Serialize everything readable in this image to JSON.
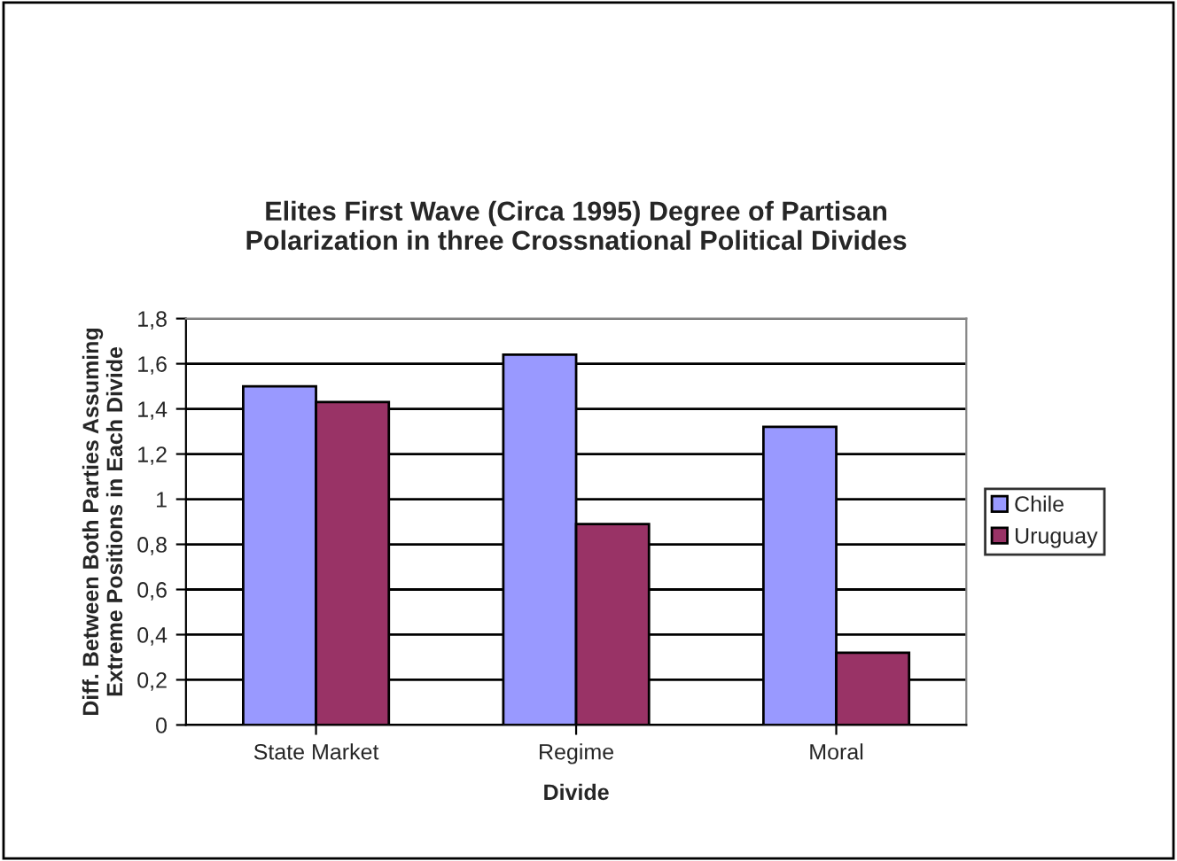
{
  "chart_data": {
    "type": "bar",
    "title": "Elites First Wave (Circa 1995) Degree of Partisan\nPolarization in three Crossnational Political Divides",
    "xlabel": "Divide",
    "ylabel": "Diff. Between Both Parties Assuming\nExtreme Positions in Each Divide",
    "categories": [
      "State Market",
      "Regime",
      "Moral"
    ],
    "series": [
      {
        "name": "Chile",
        "color": "#9999ff",
        "values": [
          1.5,
          1.64,
          1.32
        ]
      },
      {
        "name": "Uruguay",
        "color": "#993366",
        "values": [
          1.43,
          0.89,
          0.32
        ]
      }
    ],
    "ylim": [
      0,
      1.8
    ],
    "yticks": [
      0,
      {
        "value": 0.2,
        "label": "0,2"
      },
      {
        "value": 0.4,
        "label": "0,4"
      },
      {
        "value": 0.6,
        "label": "0,6"
      },
      {
        "value": 0.8,
        "label": "0,8"
      },
      1,
      {
        "value": 1.2,
        "label": "1,2"
      },
      {
        "value": 1.4,
        "label": "1,4"
      },
      {
        "value": 1.6,
        "label": "1,6"
      },
      {
        "value": 1.8,
        "label": "1,8"
      }
    ],
    "grid": "y",
    "legend": "right"
  }
}
